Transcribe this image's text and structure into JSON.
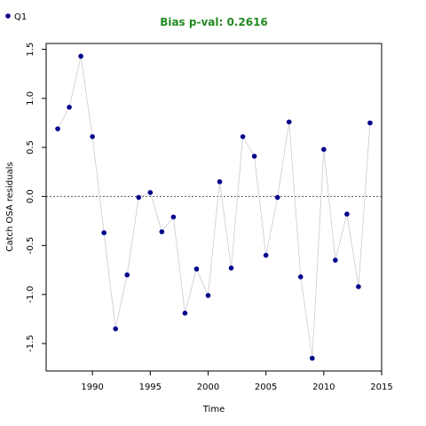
{
  "chart_data": {
    "type": "scatter",
    "title": "Bias p-val: 0.2616",
    "title_color": "#228b22",
    "xlabel": "Time",
    "ylabel": "Catch OSA residuals",
    "xlim": [
      1986,
      2015
    ],
    "ylim": [
      -1.78,
      1.56
    ],
    "xticks": [
      1990,
      1995,
      2000,
      2005,
      2010,
      2015
    ],
    "yticks": [
      -1.5,
      -1.0,
      -0.5,
      0.0,
      0.5,
      1.0,
      1.5
    ],
    "xtick_labels": [
      "1990",
      "1995",
      "2000",
      "2005",
      "2010",
      "2015"
    ],
    "ytick_labels": [
      "-1.5",
      "-1.0",
      "-0.5",
      "0.0",
      "0.5",
      "1.0",
      "1.5"
    ],
    "reference_line": 0.0,
    "legend": {
      "position": "top-left",
      "entries": [
        "Q1"
      ]
    },
    "series": [
      {
        "name": "Q1",
        "color": "#00008b",
        "line_color": "#cccccc",
        "x": [
          1987,
          1988,
          1989,
          1990,
          1991,
          1992,
          1993,
          1994,
          1995,
          1996,
          1997,
          1998,
          1999,
          2000,
          2001,
          2002,
          2003,
          2004,
          2005,
          2006,
          2007,
          2008,
          2009,
          2010,
          2011,
          2012,
          2013,
          2014
        ],
        "y": [
          0.69,
          0.91,
          1.43,
          0.61,
          -0.37,
          -1.35,
          -0.8,
          -0.01,
          0.04,
          -0.36,
          -0.21,
          -1.19,
          -0.74,
          -1.01,
          0.15,
          -0.73,
          0.61,
          0.41,
          -0.6,
          -0.01,
          0.76,
          -0.82,
          -1.65,
          0.48,
          -0.65,
          -0.18,
          -0.92,
          0.75
        ]
      }
    ]
  }
}
